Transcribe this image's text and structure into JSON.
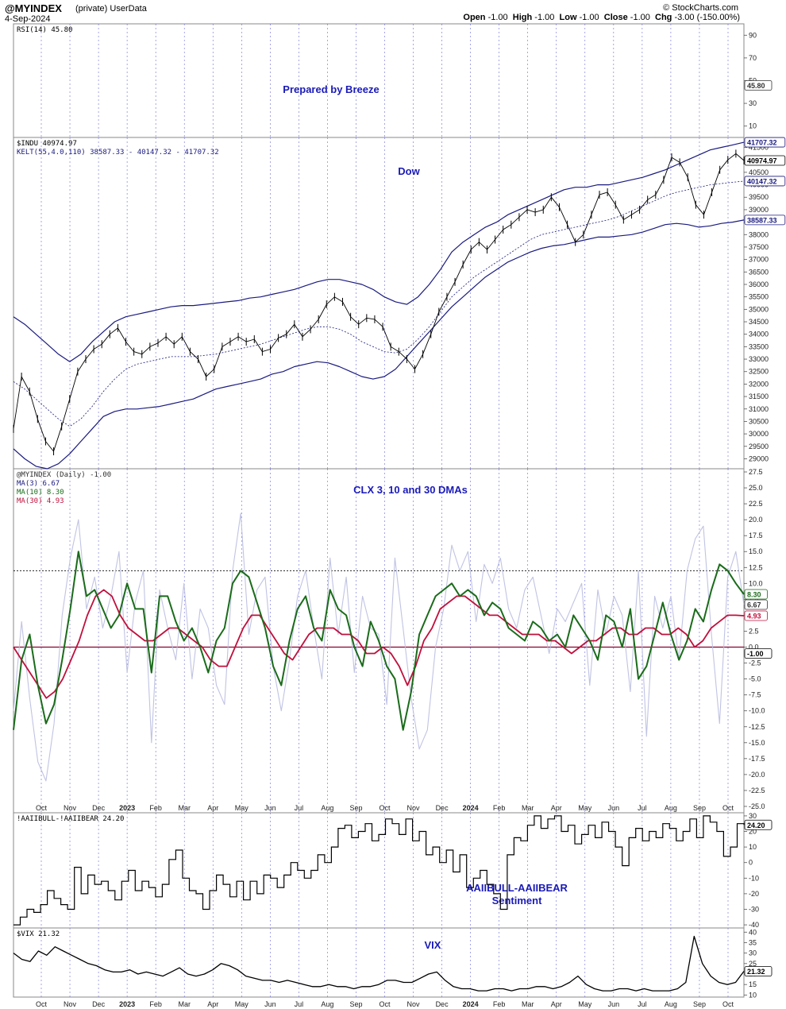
{
  "header": {
    "symbol": "@MYINDEX",
    "symbol_meta": "(private)  UserData",
    "date": "4-Sep-2024",
    "ohlc": "Open -1.00  High -1.00  Low -1.00  Close -1.00  Chg -3.00 (-150.00%)",
    "ohlc_open_label": "Open",
    "ohlc_open": "-1.00",
    "ohlc_high_label": "High",
    "ohlc_high": "-1.00",
    "ohlc_low_label": "Low",
    "ohlc_low": "-1.00",
    "ohlc_close_label": "Close",
    "ohlc_close": "-1.00",
    "ohlc_chg_label": "Chg",
    "ohlc_chg": "-3.00 (-150.00%)",
    "copyright": "© StockCharts.com"
  },
  "colors": {
    "navy": "#1a1a80",
    "annotation": "#1a1ab8",
    "ma3": "#b9bde0",
    "ma10": "#1a6b1a",
    "ma30": "#c0103c",
    "zero_line": "#8b0030",
    "grid_vertical": "#6a6ad8"
  },
  "x_axis": {
    "labels": [
      "Oct",
      "Nov",
      "Dec",
      "2023",
      "Feb",
      "Mar",
      "Apr",
      "May",
      "Jun",
      "Jul",
      "Aug",
      "Sep",
      "Oct",
      "Nov",
      "Dec",
      "2024",
      "Feb",
      "Mar",
      "Apr",
      "May",
      "Jun",
      "Jul",
      "Aug",
      "Sep",
      "Oct"
    ],
    "bold_labels": [
      "2023",
      "2024"
    ]
  },
  "chart_data": [
    {
      "id": "rsi",
      "type": "line",
      "title": "RSI(14) 45.80",
      "annotation": "Prepared by Breeze",
      "y_ticks": [
        10,
        30,
        50,
        70,
        90
      ],
      "ylim": [
        0,
        100
      ],
      "last_value": "45.80"
    },
    {
      "id": "dow",
      "type": "line",
      "title": "$INDU 40974.97",
      "subtitle": "KELT(55,4.0,110) 38587.33 - 40147.32 - 41707.32",
      "annotation": "Dow",
      "y_ticks": [
        29000,
        29500,
        30000,
        30500,
        31000,
        31500,
        32000,
        32500,
        33000,
        33500,
        34000,
        34500,
        35000,
        35500,
        36000,
        36500,
        37000,
        37500,
        38000,
        38500,
        39000,
        39500,
        40000,
        40500,
        41000,
        41500
      ],
      "ylim": [
        28600,
        41900
      ],
      "value_labels": [
        "41707.32",
        "40974.97",
        "40147.32",
        "38587.33"
      ],
      "series": [
        {
          "name": "$INDU",
          "values": [
            30200,
            32300,
            31700,
            30600,
            29700,
            29300,
            30300,
            31400,
            32500,
            33000,
            33400,
            33600,
            34000,
            34250,
            33700,
            33300,
            33200,
            33500,
            33650,
            33900,
            33600,
            33900,
            33300,
            33000,
            32300,
            32600,
            33500,
            33700,
            33900,
            33700,
            33800,
            33300,
            33400,
            33850,
            34000,
            34400,
            33900,
            34200,
            34600,
            35200,
            35500,
            35300,
            34700,
            34400,
            34650,
            34600,
            34300,
            33500,
            33300,
            33000,
            32600,
            33200,
            34000,
            34900,
            35500,
            36100,
            36800,
            37400,
            37700,
            37400,
            37800,
            38200,
            38400,
            38700,
            39000,
            38900,
            39000,
            39500,
            39100,
            38400,
            37700,
            38000,
            38800,
            39600,
            39700,
            39200,
            38600,
            38800,
            39000,
            39400,
            39600,
            40200,
            41100,
            40900,
            40300,
            39200,
            38800,
            39700,
            40600,
            41000,
            41250,
            40975
          ]
        },
        {
          "name": "KELT upper",
          "values": [
            34700,
            34400,
            34000,
            33600,
            33200,
            32900,
            33200,
            33700,
            34100,
            34500,
            34700,
            34800,
            34900,
            35000,
            35100,
            35150,
            35150,
            35200,
            35250,
            35300,
            35350,
            35450,
            35500,
            35600,
            35700,
            35800,
            35950,
            36100,
            36200,
            36200,
            36100,
            36000,
            35800,
            35500,
            35300,
            35200,
            35500,
            36000,
            36600,
            37300,
            37700,
            38000,
            38300,
            38500,
            38800,
            39000,
            39200,
            39400,
            39600,
            39800,
            39900,
            39900,
            40000,
            40000,
            40100,
            40200,
            40300,
            40450,
            40600,
            40800,
            41000,
            41200,
            41400,
            41500,
            41600,
            41707
          ]
        },
        {
          "name": "KELT middle",
          "values": [
            32100,
            31800,
            31400,
            31000,
            30600,
            30300,
            30600,
            31100,
            31700,
            32200,
            32600,
            32800,
            32900,
            33000,
            33100,
            33100,
            33100,
            33150,
            33200,
            33300,
            33400,
            33500,
            33600,
            33750,
            33900,
            34050,
            34200,
            34300,
            34300,
            34200,
            34000,
            33700,
            33500,
            33300,
            33250,
            33400,
            33800,
            34300,
            34900,
            35500,
            35900,
            36300,
            36600,
            36900,
            37200,
            37500,
            37800,
            38000,
            38100,
            38200,
            38300,
            38400,
            38500,
            38600,
            38750,
            38950,
            39150,
            39350,
            39550,
            39700,
            39800,
            39900,
            40000,
            40050,
            40100,
            40147
          ]
        },
        {
          "name": "KELT lower",
          "values": [
            29400,
            29000,
            28700,
            28600,
            28800,
            29200,
            29700,
            30200,
            30700,
            30900,
            31000,
            31000,
            31050,
            31100,
            31200,
            31300,
            31400,
            31600,
            31800,
            31900,
            32000,
            32100,
            32200,
            32400,
            32500,
            32700,
            32800,
            32900,
            32850,
            32700,
            32500,
            32300,
            32200,
            32300,
            32600,
            33100,
            33600,
            34100,
            34600,
            35100,
            35500,
            35900,
            36300,
            36600,
            36900,
            37100,
            37300,
            37450,
            37550,
            37600,
            37700,
            37800,
            37900,
            37900,
            37950,
            38000,
            38100,
            38250,
            38400,
            38450,
            38400,
            38300,
            38350,
            38450,
            38500,
            38587
          ]
        }
      ]
    },
    {
      "id": "clx",
      "type": "line",
      "title": "@MYINDEX (Daily) -1.00",
      "annotation": "CLX 3, 10 and 30 DMAs",
      "y_ticks": [
        -25.0,
        -22.5,
        -20.0,
        -17.5,
        -15.0,
        -12.5,
        -10.0,
        -7.5,
        -5.0,
        -2.5,
        0.0,
        2.5,
        5.0,
        7.5,
        10.0,
        12.5,
        15.0,
        17.5,
        20.0,
        22.5,
        25.0,
        27.5
      ],
      "ylim": [
        -26,
        28
      ],
      "reference_lines": [
        0,
        12
      ],
      "value_labels": [
        "8.30",
        "6.67",
        "4.93",
        "-1.00"
      ],
      "series": [
        {
          "name": "MA(3) 6.67",
          "values": [
            -10,
            4,
            -8,
            -18,
            -21,
            -12,
            5,
            14,
            20,
            6,
            11,
            3,
            8,
            15,
            -4,
            7,
            12,
            -15,
            9,
            3,
            -2,
            10,
            -5,
            6,
            3,
            -6,
            -9,
            12,
            21,
            2,
            9,
            11,
            -3,
            -10,
            -2,
            8,
            12,
            3,
            -5,
            14,
            2,
            11,
            -4,
            8,
            3,
            2,
            -9,
            14,
            3,
            -8,
            -16,
            -13,
            0,
            6,
            16,
            12,
            15,
            4,
            13,
            10,
            14,
            6,
            3,
            9,
            11,
            5,
            -1,
            6,
            4,
            7,
            10,
            -6,
            9,
            2,
            8,
            5,
            -7,
            12,
            -14,
            8,
            3,
            8,
            -2,
            12,
            17,
            19,
            2,
            -12,
            11,
            15,
            6.67
          ]
        },
        {
          "name": "MA(10) 8.30",
          "values": [
            -13,
            -2,
            2,
            -6,
            -12,
            -9,
            -2,
            6,
            15,
            8,
            9,
            6,
            3,
            5,
            10,
            6,
            6,
            -4,
            8,
            8,
            4,
            1,
            3,
            0,
            -4,
            1,
            3,
            10,
            12,
            11,
            7,
            3,
            -3,
            -6,
            1,
            6,
            8,
            3,
            1,
            9,
            6,
            5,
            0,
            -3,
            4,
            1,
            -3,
            -5,
            -13,
            -7,
            2,
            5,
            8,
            9,
            10,
            8,
            9,
            8,
            5,
            7,
            6,
            3,
            2,
            1,
            4,
            3,
            1,
            2,
            0,
            5,
            3,
            1,
            -2,
            5,
            4,
            0,
            6,
            -5,
            -3,
            2,
            7,
            2,
            -2,
            1,
            6,
            4,
            9,
            13,
            12,
            10,
            8.3
          ]
        },
        {
          "name": "MA(30) 4.93",
          "values": [
            0,
            -2,
            -4,
            -6,
            -8,
            -7,
            -5,
            -2,
            1,
            5,
            8,
            9,
            8,
            5,
            3,
            2,
            1,
            1,
            2,
            3,
            3,
            2,
            1,
            0,
            -2,
            -3,
            -3,
            0,
            3,
            5,
            5,
            3,
            1,
            -1,
            -2,
            0,
            2,
            3,
            3,
            3,
            2,
            2,
            1,
            -1,
            -1,
            0,
            -1,
            -3,
            -6,
            -3,
            1,
            3,
            6,
            7,
            8,
            8,
            7,
            6,
            5,
            5,
            4,
            3,
            2,
            2,
            2,
            1,
            1,
            0,
            -1,
            0,
            1,
            1,
            2,
            3,
            3,
            2,
            2,
            3,
            3,
            2,
            2,
            3,
            2,
            0,
            1,
            3,
            4,
            5,
            5,
            4.93
          ]
        }
      ]
    },
    {
      "id": "aaii",
      "type": "line",
      "title": "!AAIIBULL-!AAIIBEAR 24.20",
      "annotation": "AAIIBULL-AAIIBEAR Sentiment",
      "annotation_line1": "AAIIBULL-AAIIBEAR",
      "annotation_line2": "Sentiment",
      "y_ticks": [
        -40,
        -30,
        -20,
        -10,
        0,
        10,
        20,
        30
      ],
      "ylim": [
        -42,
        32
      ],
      "value_labels": [
        "24.20"
      ],
      "series": [
        {
          "name": "!AAIIBULL-!AAIIBEAR",
          "values": [
            -40,
            -35,
            -30,
            -32,
            -27,
            -18,
            -23,
            -27,
            -30,
            -3,
            -20,
            -8,
            -14,
            -12,
            -18,
            -24,
            -12,
            -5,
            -18,
            -12,
            -16,
            -22,
            -14,
            2,
            8,
            -10,
            -18,
            -20,
            -30,
            -18,
            -8,
            -14,
            -22,
            -12,
            -24,
            -12,
            -20,
            -8,
            -10,
            -16,
            -8,
            0,
            -5,
            -10,
            -5,
            5,
            0,
            10,
            22,
            24,
            16,
            20,
            25,
            14,
            18,
            28,
            25,
            18,
            28,
            14,
            20,
            5,
            10,
            0,
            8,
            -6,
            5,
            -16,
            -10,
            -5,
            -14,
            -20,
            -30,
            5,
            16,
            14,
            24,
            30,
            22,
            28,
            30,
            20,
            24,
            12,
            18,
            24,
            16,
            26,
            20,
            10,
            -2,
            16,
            22,
            14,
            20,
            16,
            25,
            22,
            14,
            20,
            28,
            16,
            30,
            26,
            20,
            4,
            10,
            25,
            24.2
          ]
        }
      ]
    },
    {
      "id": "vix",
      "type": "line",
      "title": "$VIX 21.32",
      "annotation": "VIX",
      "y_ticks": [
        10,
        15,
        20,
        25,
        30,
        35,
        40
      ],
      "ylim": [
        9,
        42
      ],
      "value_labels": [
        "21.32"
      ],
      "series": [
        {
          "name": "$VIX",
          "values": [
            30,
            27,
            26,
            31,
            29,
            33,
            31,
            29,
            27,
            25,
            24,
            22,
            21,
            21,
            22,
            20,
            21,
            20,
            19,
            21,
            23,
            20,
            19,
            20,
            22,
            25,
            24,
            22,
            19,
            18,
            17,
            17,
            16,
            17,
            16,
            15,
            14,
            14,
            15,
            14,
            14,
            13,
            14,
            14,
            15,
            17,
            17,
            16,
            16,
            18,
            20,
            21,
            17,
            14,
            13,
            13,
            12,
            12,
            13,
            13,
            12,
            13,
            13,
            14,
            14,
            13,
            14,
            16,
            19,
            15,
            13,
            12,
            12,
            13,
            13,
            12,
            13,
            12,
            12,
            12,
            13,
            16,
            38,
            25,
            19,
            16,
            15,
            16,
            21.32
          ]
        }
      ]
    }
  ]
}
